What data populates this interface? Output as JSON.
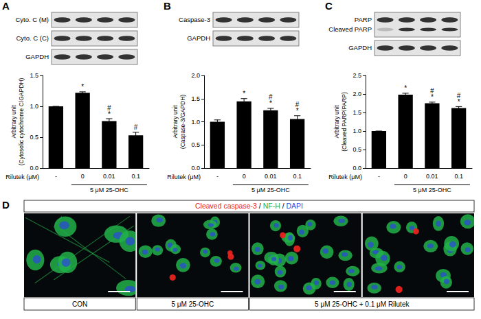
{
  "chart_data": [
    {
      "panel": "A",
      "type": "bar",
      "blot": [
        [
          "Cyto. C (M)"
        ],
        [
          "Cyto. C (C)"
        ],
        [
          "GAPDH"
        ]
      ],
      "categories": [
        "-",
        "0",
        "0.01",
        "0.1"
      ],
      "x_label": "Rilutek (μM)",
      "group": {
        "label": "5 μM 25-OHC",
        "categories": [
          "0",
          "0.01",
          "0.1"
        ]
      },
      "y_label": [
        "Arbitrary unit",
        "(Cytosolic cytochrome C/GAPDH)"
      ],
      "values": [
        1.0,
        1.22,
        0.76,
        0.53
      ],
      "errors": [
        0,
        0.015,
        0.04,
        0.05
      ],
      "significance": [
        null,
        [
          "*"
        ],
        [
          "#",
          "*"
        ],
        [
          "#"
        ]
      ],
      "ylim": [
        0,
        1.5
      ],
      "yticks": [
        {
          "value": 0,
          "label": "0.0"
        },
        0.5,
        {
          "value": 1,
          "label": "1.0"
        },
        1.5
      ],
      "color": "#000000",
      "grid": false
    },
    {
      "panel": "B",
      "type": "bar",
      "blot": [
        [
          "Caspase-3"
        ],
        [
          "GAPDH"
        ]
      ],
      "categories": [
        "-",
        "0",
        "0.01",
        "0.1"
      ],
      "x_label": "Rilutek (μM)",
      "group": {
        "label": "5 μM 25-OHC",
        "categories": [
          "0",
          "0.01",
          "0.1"
        ]
      },
      "y_label": [
        "Arbitrary unit",
        "(Caspase-3/GAPDH)"
      ],
      "values": [
        1.0,
        1.44,
        1.25,
        1.06
      ],
      "errors": [
        0.04,
        0.06,
        0.04,
        0.07
      ],
      "significance": [
        null,
        [
          "*"
        ],
        [
          "#",
          "*"
        ],
        [
          "#",
          "*"
        ]
      ],
      "ylim": [
        0,
        2
      ],
      "yticks": [
        {
          "value": 0,
          "label": "0.0"
        },
        0.5,
        {
          "value": 1,
          "label": "1.0"
        },
        1.5,
        {
          "value": 2,
          "label": "2.0"
        }
      ],
      "color": "#000000",
      "grid": false
    },
    {
      "panel": "C",
      "type": "bar",
      "blot": [
        [
          "PARP",
          "Cleaved PARP"
        ],
        [
          "GAPDH"
        ]
      ],
      "categories": [
        "-",
        "0",
        "0.01",
        "0.1"
      ],
      "x_label": "Rilutek (μM)",
      "group": {
        "label": "5 μM 25-OHC",
        "categories": [
          "0",
          "0.01",
          "0.1"
        ]
      },
      "y_label": [
        "Arbitrary unit",
        "(Cleaved PARP/PARP)"
      ],
      "values": [
        1.0,
        1.98,
        1.75,
        1.62
      ],
      "errors": [
        0,
        0.04,
        0.03,
        0.04
      ],
      "significance": [
        null,
        [
          "*"
        ],
        [
          "#",
          "*"
        ],
        [
          "#",
          "*"
        ]
      ],
      "ylim": [
        0,
        2.5
      ],
      "yticks": [
        {
          "value": 0,
          "label": "0.0"
        },
        0.5,
        {
          "value": 1,
          "label": "1.0"
        },
        1.5,
        {
          "value": 2,
          "label": "2.0"
        },
        2.5
      ],
      "color": "#000000",
      "grid": false
    }
  ],
  "panel_d": {
    "panel": "D",
    "stain_legend": [
      {
        "text": "Cleaved caspase-3",
        "color": "#e8231e"
      },
      {
        "text": "NF-H",
        "color": "#22b04a"
      },
      {
        "text": "DAPI",
        "color": "#2b4bd8"
      }
    ],
    "separator": "/",
    "conditions": [
      {
        "label": "CON",
        "images": 1
      },
      {
        "label": "5 μM 25-OHC",
        "images": 1
      },
      {
        "label": "5 μM 25-OHC + 0.1 μM Rilutek",
        "images": 2
      }
    ]
  }
}
